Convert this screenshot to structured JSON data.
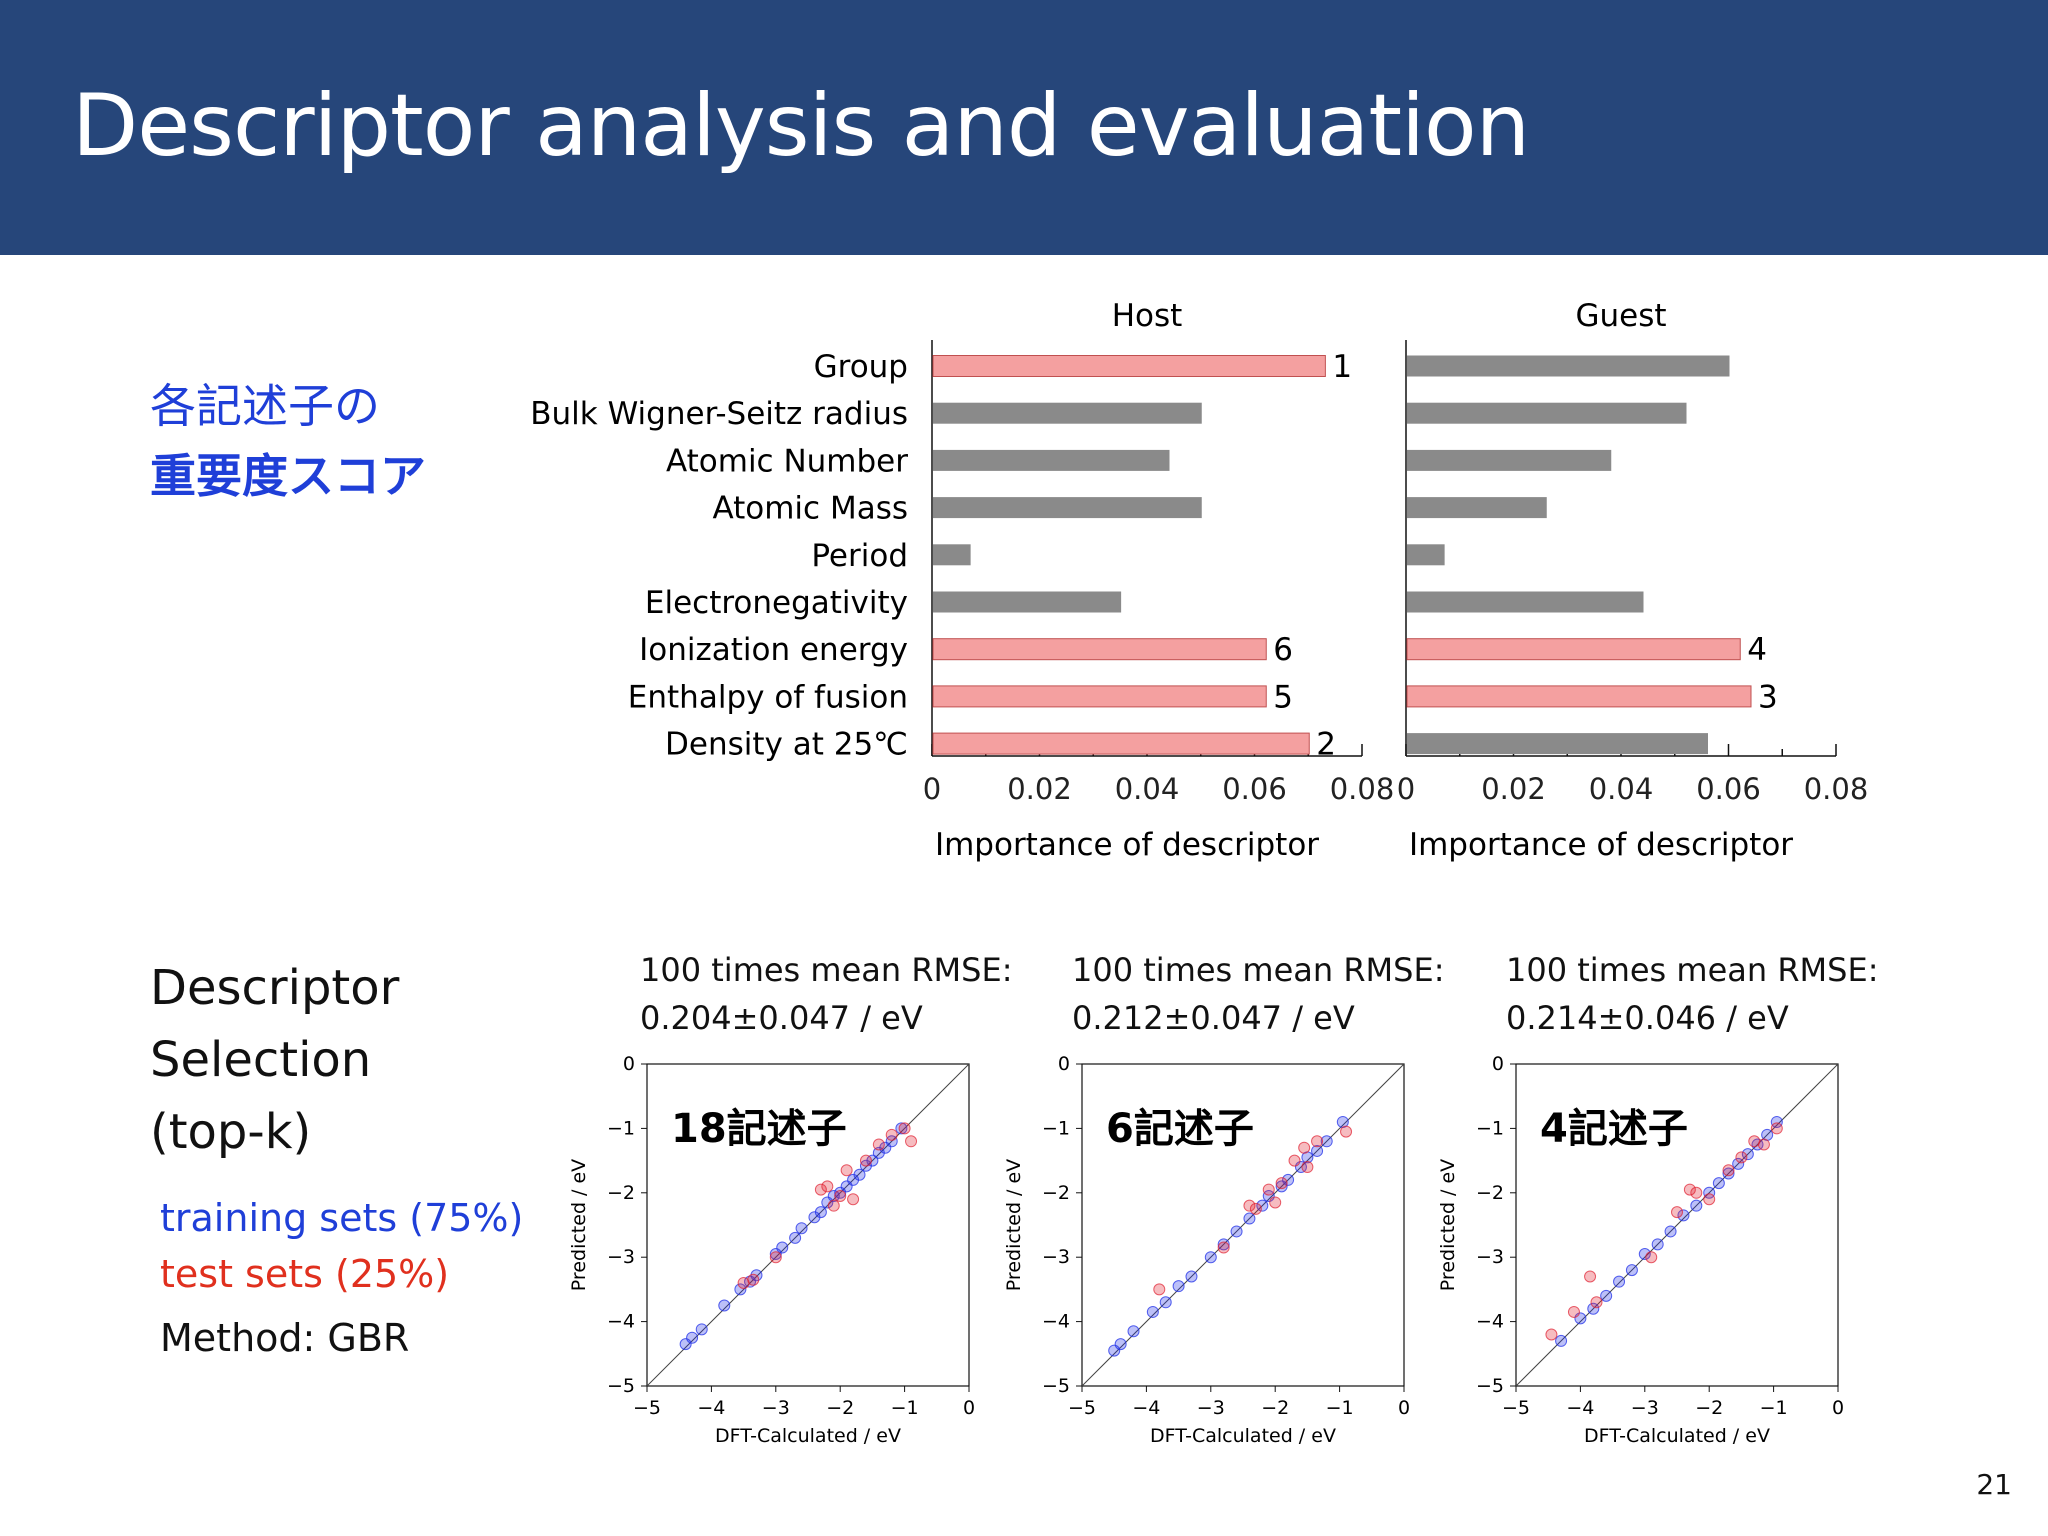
{
  "header": {
    "title": "Descriptor analysis and evaluation"
  },
  "left": {
    "importance_line1": "各記述子の",
    "importance_line2": "重要度スコア",
    "selection_lines": [
      "Descriptor",
      "Selection",
      "(top-k)"
    ],
    "legend_training": "training sets (75%)",
    "legend_test": "test sets (25%)",
    "legend_method": "Method: GBR"
  },
  "page_number": "21",
  "colors": {
    "header_bg": "#26467a",
    "bar_selected": "#f4a0a0",
    "bar_other": "#8a8a8a",
    "training": "#2030e8",
    "test": "#e02030"
  },
  "rmse": [
    {
      "line1": "100 times mean RMSE:",
      "line2": "0.204±0.047 / eV"
    },
    {
      "line1": "100 times mean RMSE:",
      "line2": "0.212±0.047 / eV"
    },
    {
      "line1": "100 times mean RMSE:",
      "line2": "0.214±0.046 / eV"
    }
  ],
  "chart_data": [
    {
      "type": "bar",
      "title": "Host",
      "orientation": "horizontal",
      "categories": [
        "Group",
        "Bulk Wigner-Seitz radius",
        "Atomic Number",
        "Atomic Mass",
        "Period",
        "Electronegativity",
        "Ionization energy",
        "Enthalpy of fusion",
        "Density at 25℃"
      ],
      "values": [
        0.073,
        0.05,
        0.044,
        0.05,
        0.007,
        0.035,
        0.062,
        0.062,
        0.07
      ],
      "ranks": [
        "1",
        "",
        "",
        "",
        "",
        "",
        "6",
        "5",
        "2"
      ],
      "xlabel": "Importance of descriptor",
      "xlim": [
        0,
        0.08
      ],
      "xticks": [
        "0",
        "0.02",
        "0.04",
        "0.06",
        "0.08"
      ]
    },
    {
      "type": "bar",
      "title": "Guest",
      "orientation": "horizontal",
      "categories": [
        "Group",
        "Bulk Wigner-Seitz radius",
        "Atomic Number",
        "Atomic Mass",
        "Period",
        "Electronegativity",
        "Ionization energy",
        "Enthalpy of fusion",
        "Density at 25℃"
      ],
      "values": [
        0.06,
        0.052,
        0.038,
        0.026,
        0.007,
        0.044,
        0.062,
        0.064,
        0.056
      ],
      "ranks": [
        "",
        "",
        "",
        "",
        "",
        "",
        "4",
        "3",
        ""
      ],
      "xlabel": "Importance of descriptor",
      "xlim": [
        0,
        0.08
      ],
      "xticks": [
        "0",
        "0.02",
        "0.04",
        "0.06",
        "0.08"
      ]
    },
    {
      "type": "scatter",
      "label": "18記述子",
      "xlabel": "DFT-Calculated / eV",
      "ylabel": "Predicted / eV",
      "xlim": [
        -5,
        0
      ],
      "ylim": [
        -5,
        0
      ],
      "ticks": [
        "−5",
        "−4",
        "−3",
        "−2",
        "−1",
        "0"
      ],
      "train": [
        [
          -4.4,
          -4.35
        ],
        [
          -4.3,
          -4.25
        ],
        [
          -4.15,
          -4.12
        ],
        [
          -3.8,
          -3.75
        ],
        [
          -3.55,
          -3.5
        ],
        [
          -3.4,
          -3.38
        ],
        [
          -3.3,
          -3.28
        ],
        [
          -3.0,
          -2.95
        ],
        [
          -2.9,
          -2.85
        ],
        [
          -2.7,
          -2.7
        ],
        [
          -2.6,
          -2.55
        ],
        [
          -2.4,
          -2.38
        ],
        [
          -2.3,
          -2.3
        ],
        [
          -2.2,
          -2.15
        ],
        [
          -2.1,
          -2.05
        ],
        [
          -2.0,
          -2.0
        ],
        [
          -1.9,
          -1.9
        ],
        [
          -1.8,
          -1.8
        ],
        [
          -1.7,
          -1.72
        ],
        [
          -1.6,
          -1.58
        ],
        [
          -1.5,
          -1.5
        ],
        [
          -1.4,
          -1.38
        ],
        [
          -1.3,
          -1.3
        ],
        [
          -1.2,
          -1.2
        ],
        [
          -1.05,
          -1.0
        ]
      ],
      "test": [
        [
          -3.5,
          -3.4
        ],
        [
          -3.35,
          -3.35
        ],
        [
          -3.0,
          -3.0
        ],
        [
          -2.3,
          -1.95
        ],
        [
          -2.2,
          -1.9
        ],
        [
          -2.0,
          -2.05
        ],
        [
          -1.9,
          -1.65
        ],
        [
          -1.8,
          -2.1
        ],
        [
          -1.6,
          -1.5
        ],
        [
          -1.4,
          -1.25
        ],
        [
          -1.2,
          -1.1
        ],
        [
          -1.0,
          -1.0
        ],
        [
          -0.9,
          -1.2
        ],
        [
          -2.1,
          -2.2
        ]
      ]
    },
    {
      "type": "scatter",
      "label": "6記述子",
      "xlabel": "DFT-Calculated / eV",
      "ylabel": "Predicted / eV",
      "xlim": [
        -5,
        0
      ],
      "ylim": [
        -5,
        0
      ],
      "ticks": [
        "−5",
        "−4",
        "−3",
        "−2",
        "−1",
        "0"
      ],
      "train": [
        [
          -4.5,
          -4.45
        ],
        [
          -4.4,
          -4.35
        ],
        [
          -4.2,
          -4.15
        ],
        [
          -3.9,
          -3.85
        ],
        [
          -3.7,
          -3.7
        ],
        [
          -3.5,
          -3.45
        ],
        [
          -3.3,
          -3.3
        ],
        [
          -3.0,
          -3.0
        ],
        [
          -2.8,
          -2.8
        ],
        [
          -2.6,
          -2.6
        ],
        [
          -2.4,
          -2.4
        ],
        [
          -2.2,
          -2.2
        ],
        [
          -2.1,
          -2.05
        ],
        [
          -1.9,
          -1.9
        ],
        [
          -1.8,
          -1.8
        ],
        [
          -1.6,
          -1.6
        ],
        [
          -1.5,
          -1.45
        ],
        [
          -1.35,
          -1.35
        ],
        [
          -1.2,
          -1.2
        ],
        [
          -0.95,
          -0.9
        ]
      ],
      "test": [
        [
          -3.8,
          -3.5
        ],
        [
          -2.8,
          -2.85
        ],
        [
          -2.4,
          -2.2
        ],
        [
          -2.3,
          -2.25
        ],
        [
          -2.1,
          -1.95
        ],
        [
          -1.9,
          -1.85
        ],
        [
          -1.7,
          -1.5
        ],
        [
          -1.55,
          -1.3
        ],
        [
          -1.5,
          -1.6
        ],
        [
          -1.35,
          -1.2
        ],
        [
          -0.9,
          -1.05
        ],
        [
          -2.0,
          -2.15
        ]
      ]
    },
    {
      "type": "scatter",
      "label": "4記述子",
      "xlabel": "DFT-Calculated / eV",
      "ylabel": "Predicted / eV",
      "xlim": [
        -5,
        0
      ],
      "ylim": [
        -5,
        0
      ],
      "ticks": [
        "−5",
        "−4",
        "−3",
        "−2",
        "−1",
        "0"
      ],
      "train": [
        [
          -4.3,
          -4.3
        ],
        [
          -4.0,
          -3.95
        ],
        [
          -3.8,
          -3.8
        ],
        [
          -3.6,
          -3.6
        ],
        [
          -3.4,
          -3.38
        ],
        [
          -3.2,
          -3.2
        ],
        [
          -3.0,
          -2.95
        ],
        [
          -2.8,
          -2.8
        ],
        [
          -2.6,
          -2.6
        ],
        [
          -2.4,
          -2.35
        ],
        [
          -2.2,
          -2.2
        ],
        [
          -2.0,
          -2.0
        ],
        [
          -1.85,
          -1.85
        ],
        [
          -1.7,
          -1.7
        ],
        [
          -1.55,
          -1.55
        ],
        [
          -1.4,
          -1.4
        ],
        [
          -1.25,
          -1.25
        ],
        [
          -1.1,
          -1.1
        ],
        [
          -0.95,
          -0.9
        ]
      ],
      "test": [
        [
          -4.45,
          -4.2
        ],
        [
          -4.1,
          -3.85
        ],
        [
          -3.85,
          -3.3
        ],
        [
          -3.75,
          -3.7
        ],
        [
          -2.9,
          -3.0
        ],
        [
          -2.5,
          -2.3
        ],
        [
          -2.3,
          -1.95
        ],
        [
          -2.2,
          -2.0
        ],
        [
          -2.0,
          -2.1
        ],
        [
          -1.7,
          -1.65
        ],
        [
          -1.5,
          -1.45
        ],
        [
          -1.3,
          -1.2
        ],
        [
          -1.15,
          -1.25
        ],
        [
          -0.95,
          -1.0
        ]
      ]
    }
  ]
}
